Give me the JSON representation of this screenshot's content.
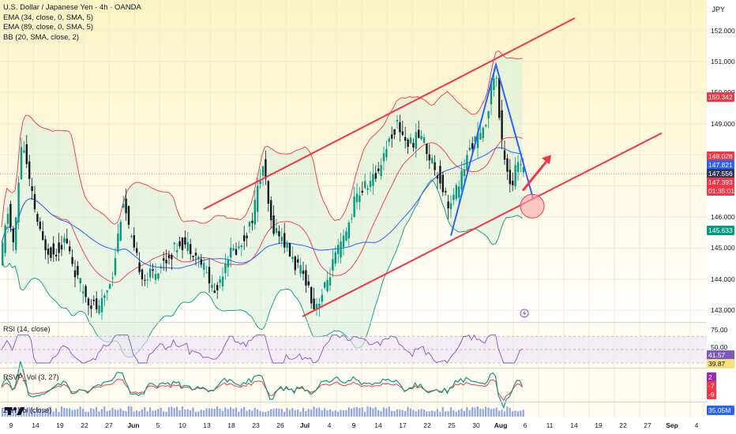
{
  "chart_title": "U.S. Dollar / Japanese Yen · 4h · OANDA",
  "currency": "JPY",
  "indicators": {
    "ema34": "EMA (34, close, 0, SMA, 5)",
    "ema89": "EMA (89, close, 0, SMA, 5)",
    "bb": "BB (20, SMA, close, 2)",
    "rsi": "RSI (14, close)",
    "rsvp": "RSVP_Vol (3, 27)",
    "vol": "24H Vol (close)"
  },
  "price_axis": [
    "152.000",
    "151.000",
    "150.000",
    "149.000",
    "146.000",
    "145.000",
    "144.000",
    "143.000"
  ],
  "price_tags": [
    {
      "text": "150.342",
      "color": "#f23645",
      "price": 150.342
    },
    {
      "text": "148.028",
      "color": "#f23645",
      "price": 148.028
    },
    {
      "text": "147.821",
      "color": "#2962ff",
      "price": 147.821
    },
    {
      "text": "147.556",
      "color": "#2e3a59",
      "price": 147.556
    },
    {
      "text": "147.393",
      "color": "#f23645",
      "price": 147.393
    },
    {
      "text": "01:35:01",
      "color": "#f23645",
      "price": 147.12
    },
    {
      "text": "145.633",
      "color": "#089981",
      "price": 145.633
    }
  ],
  "rsi_axis": {
    "upper": "75.00",
    "middle": "50.00"
  },
  "rsi_tags": [
    {
      "text": "41.57",
      "color": "#7e57c2",
      "value": 41.57
    },
    {
      "text": "39.87",
      "color": "#f7e07a",
      "value": 39.87
    }
  ],
  "rsvp_tags": [
    {
      "text": "2",
      "color": "#9c27b0"
    },
    {
      "text": "-7",
      "color": "#f23645"
    },
    {
      "text": "-9",
      "color": "#f23645"
    }
  ],
  "vol_tag": {
    "text": "35.05M",
    "color": "#2962ff"
  },
  "date_axis": [
    {
      "label": "9",
      "bold": false
    },
    {
      "label": "14",
      "bold": false
    },
    {
      "label": "19",
      "bold": false
    },
    {
      "label": "22",
      "bold": false
    },
    {
      "label": "27",
      "bold": false
    },
    {
      "label": "Jun",
      "bold": true
    },
    {
      "label": "5",
      "bold": false
    },
    {
      "label": "10",
      "bold": false
    },
    {
      "label": "13",
      "bold": false
    },
    {
      "label": "18",
      "bold": false
    },
    {
      "label": "23",
      "bold": false
    },
    {
      "label": "26",
      "bold": false
    },
    {
      "label": "Jul",
      "bold": true
    },
    {
      "label": "4",
      "bold": false
    },
    {
      "label": "9",
      "bold": false
    },
    {
      "label": "14",
      "bold": false
    },
    {
      "label": "17",
      "bold": false
    },
    {
      "label": "22",
      "bold": false
    },
    {
      "label": "25",
      "bold": false
    },
    {
      "label": "30",
      "bold": false
    },
    {
      "label": "Aug",
      "bold": true
    },
    {
      "label": "6",
      "bold": false
    },
    {
      "label": "11",
      "bold": false
    },
    {
      "label": "14",
      "bold": false
    },
    {
      "label": "19",
      "bold": false
    },
    {
      "label": "22",
      "bold": false
    },
    {
      "label": "27",
      "bold": false
    },
    {
      "label": "Sep",
      "bold": true
    },
    {
      "label": "4",
      "bold": false
    }
  ],
  "colors": {
    "up": "#089981",
    "down": "#131722",
    "channel": "#f23645",
    "pattern": "#2962ff",
    "arrow": "#f23645",
    "ema34": "#f23645",
    "ema89": "#2962ff",
    "bb_upper": "#f23645",
    "bb_lower": "#089981",
    "rsi": "#7e57c2"
  },
  "chart_data": {
    "type": "candlestick",
    "symbol": "USDJPY",
    "timeframe": "4h",
    "ylim": [
      142.7,
      152.6
    ],
    "last_price": 147.393,
    "series_path": [
      [
        0,
        144.0
      ],
      [
        12,
        146.2
      ],
      [
        20,
        145.0
      ],
      [
        30,
        148.6
      ],
      [
        40,
        147.0
      ],
      [
        55,
        145.2
      ],
      [
        70,
        144.8
      ],
      [
        85,
        145.3
      ],
      [
        100,
        144.0
      ],
      [
        115,
        143.3
      ],
      [
        128,
        143.0
      ],
      [
        145,
        144.2
      ],
      [
        158,
        146.6
      ],
      [
        170,
        145.0
      ],
      [
        185,
        144.0
      ],
      [
        200,
        144.3
      ],
      [
        215,
        144.7
      ],
      [
        230,
        145.2
      ],
      [
        245,
        145.0
      ],
      [
        260,
        144.4
      ],
      [
        275,
        143.5
      ],
      [
        290,
        144.8
      ],
      [
        305,
        145.0
      ],
      [
        320,
        145.8
      ],
      [
        335,
        147.7
      ],
      [
        345,
        145.8
      ],
      [
        360,
        145.3
      ],
      [
        375,
        144.5
      ],
      [
        390,
        144.0
      ],
      [
        400,
        143.1
      ],
      [
        412,
        143.6
      ],
      [
        425,
        144.6
      ],
      [
        440,
        145.4
      ],
      [
        452,
        146.6
      ],
      [
        465,
        147.0
      ],
      [
        478,
        147.3
      ],
      [
        490,
        148.2
      ],
      [
        505,
        149.0
      ],
      [
        520,
        148.3
      ],
      [
        535,
        148.7
      ],
      [
        545,
        148.0
      ],
      [
        555,
        147.5
      ],
      [
        565,
        146.8
      ],
      [
        572,
        146.3
      ],
      [
        585,
        147.2
      ],
      [
        600,
        148.4
      ],
      [
        615,
        148.7
      ],
      [
        625,
        150.3
      ],
      [
        630,
        150.8
      ],
      [
        636,
        148.6
      ],
      [
        642,
        147.9
      ],
      [
        650,
        146.9
      ],
      [
        657,
        147.8
      ],
      [
        664,
        147.4
      ]
    ]
  },
  "annotations": {
    "channel_upper": [
      [
        258,
        151.0
      ],
      [
        728,
        152.4
      ]
    ],
    "channel_upper_start_price": 146.25,
    "channel_lower": [
      [
        383,
        142.8
      ],
      [
        838,
        148.7
      ]
    ],
    "pattern": [
      [
        571,
        145.4
      ],
      [
        628,
        150.9
      ],
      [
        675,
        146.6
      ]
    ],
    "arrow_start": [
      662,
      146.85
    ],
    "arrow_end": [
      698,
      148.0
    ],
    "circle_center": [
      674,
      146.35
    ]
  }
}
